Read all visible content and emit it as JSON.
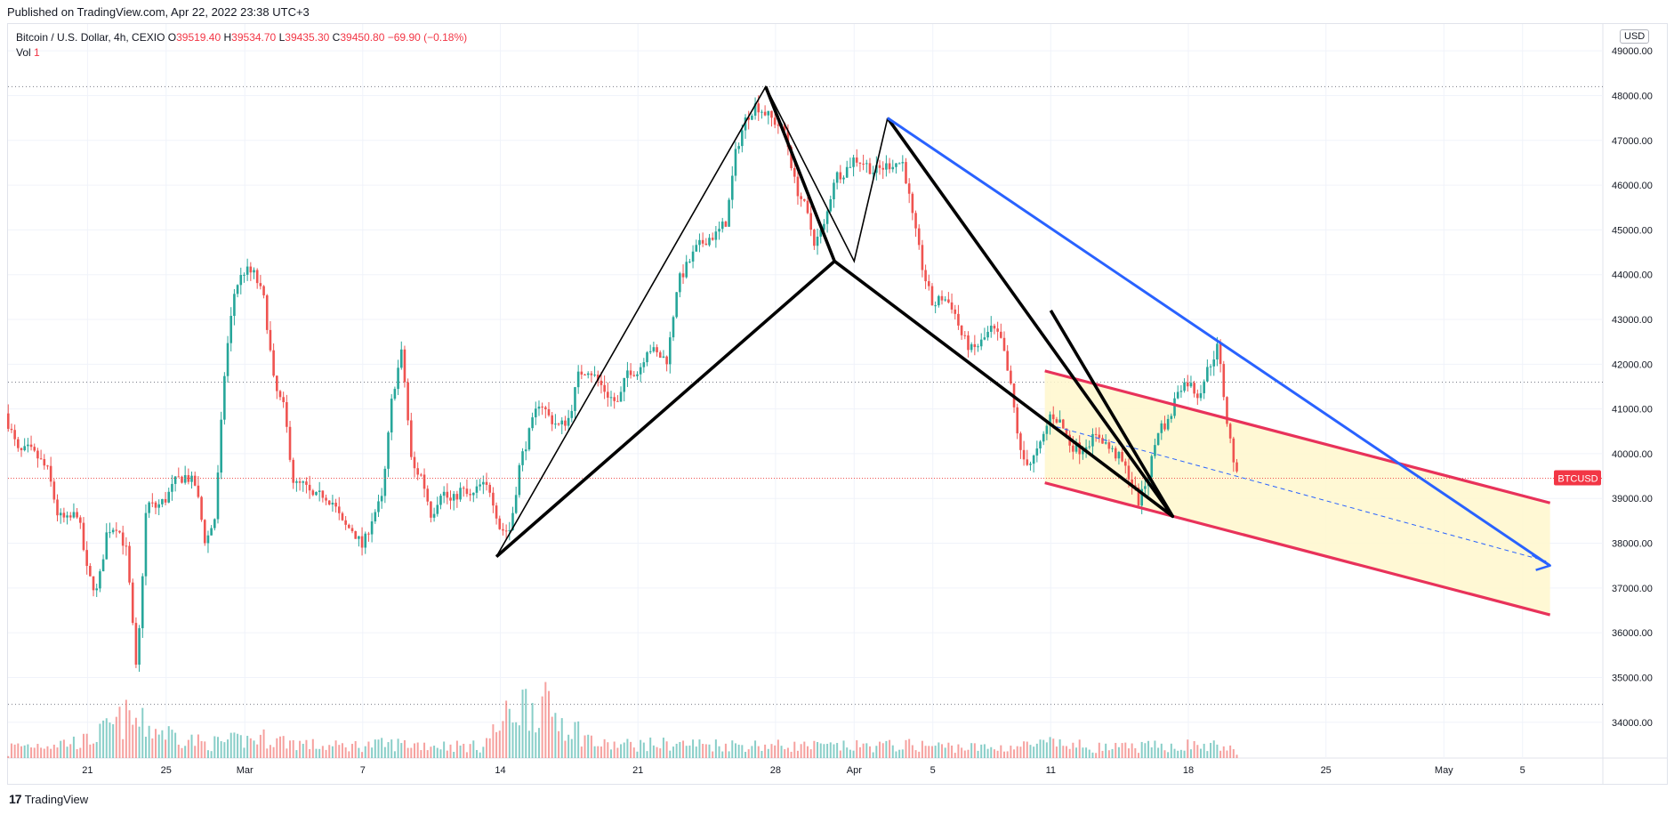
{
  "header": {
    "published": "Published on TradingView.com, Apr 22, 2022 23:38 UTC+3"
  },
  "legend": {
    "symbol": "Bitcoin / U.S. Dollar, 4h, CEXIO",
    "o_label": "O",
    "o_value": "39519.40",
    "h_label": "H",
    "h_value": "39534.70",
    "l_label": "L",
    "l_value": "39435.30",
    "c_label": "C",
    "c_value": "39450.80",
    "change": "−69.90 (−0.18%)",
    "vol_label": "Vol",
    "vol_value": "1"
  },
  "currency": "USD",
  "price_tag": "BTCUSD",
  "footer": {
    "brand": "TradingView"
  },
  "colors": {
    "up": "#26a69a",
    "down": "#ef5350",
    "channel": "#e8325a",
    "channel_fill": "#fff7cc",
    "trend": "#2962ff",
    "pattern": "#000000",
    "grid": "#f0f3fa"
  },
  "chart_data": {
    "type": "candlestick",
    "timeframe": "4h",
    "ylim": [
      33200,
      49600
    ],
    "y_ticks": [
      34000,
      35000,
      36000,
      37000,
      38000,
      39000,
      40000,
      41000,
      42000,
      43000,
      44000,
      45000,
      46000,
      47000,
      48000,
      49000
    ],
    "y_tick_labels": [
      "34000.00",
      "35000.00",
      "36000.00",
      "37000.00",
      "38000.00",
      "39000.00",
      "40000.00",
      "41000.00",
      "42000.00",
      "43000.00",
      "44000.00",
      "45000.00",
      "46000.00",
      "47000.00",
      "48000.00",
      "49000.00"
    ],
    "x_ticks": [
      {
        "label": "21",
        "t": 4
      },
      {
        "label": "25",
        "t": 8
      },
      {
        "label": "Mar",
        "t": 12
      },
      {
        "label": "7",
        "t": 18
      },
      {
        "label": "14",
        "t": 25
      },
      {
        "label": "21",
        "t": 32
      },
      {
        "label": "28",
        "t": 39
      },
      {
        "label": "Apr",
        "t": 43
      },
      {
        "label": "5",
        "t": 47
      },
      {
        "label": "11",
        "t": 53
      },
      {
        "label": "18",
        "t": 60
      },
      {
        "label": "25",
        "t": 67
      },
      {
        "label": "May",
        "t": 73
      },
      {
        "label": "5",
        "t": 77
      }
    ],
    "last_price": 39450.8,
    "horizontal_levels": [
      48200,
      41600,
      34400
    ],
    "close_path": [
      [
        -0.2,
        40900
      ],
      [
        0.5,
        40000
      ],
      [
        1,
        40100
      ],
      [
        1.5,
        39900
      ],
      [
        2,
        39600
      ],
      [
        2.5,
        38600
      ],
      [
        3,
        38500
      ],
      [
        3.5,
        38700
      ],
      [
        4,
        37300
      ],
      [
        4.5,
        36900
      ],
      [
        5,
        38300
      ],
      [
        5.5,
        38400
      ],
      [
        6,
        37800
      ],
      [
        6.5,
        35000
      ],
      [
        7,
        38900
      ],
      [
        7.5,
        38800
      ],
      [
        8,
        39000
      ],
      [
        8.5,
        39400
      ],
      [
        9,
        39500
      ],
      [
        9.5,
        39300
      ],
      [
        10,
        38000
      ],
      [
        10.5,
        38600
      ],
      [
        11,
        42000
      ],
      [
        11.5,
        43700
      ],
      [
        12,
        44100
      ],
      [
        12.5,
        44000
      ],
      [
        13,
        43400
      ],
      [
        13.5,
        41500
      ],
      [
        14,
        41000
      ],
      [
        14.5,
        39300
      ],
      [
        15,
        39300
      ],
      [
        15.5,
        39000
      ],
      [
        16,
        39100
      ],
      [
        16.5,
        38900
      ],
      [
        17,
        38400
      ],
      [
        17.5,
        38300
      ],
      [
        18,
        37900
      ],
      [
        18.5,
        38600
      ],
      [
        19,
        39000
      ],
      [
        19.5,
        41300
      ],
      [
        20,
        42300
      ],
      [
        20.5,
        39700
      ],
      [
        21,
        39500
      ],
      [
        21.5,
        38600
      ],
      [
        22,
        39200
      ],
      [
        22.5,
        38900
      ],
      [
        23,
        39200
      ],
      [
        23.5,
        39000
      ],
      [
        24,
        39300
      ],
      [
        24.5,
        39200
      ],
      [
        25,
        38300
      ],
      [
        25.5,
        38300
      ],
      [
        26,
        39800
      ],
      [
        26.5,
        40500
      ],
      [
        27,
        41200
      ],
      [
        27.5,
        40800
      ],
      [
        28,
        40600
      ],
      [
        28.5,
        40800
      ],
      [
        29,
        41800
      ],
      [
        29.5,
        41900
      ],
      [
        30,
        41600
      ],
      [
        30.5,
        41300
      ],
      [
        31,
        41100
      ],
      [
        31.5,
        41900
      ],
      [
        32,
        41800
      ],
      [
        32.5,
        42400
      ],
      [
        33,
        42200
      ],
      [
        33.5,
        42100
      ],
      [
        34,
        43800
      ],
      [
        34.5,
        44200
      ],
      [
        35,
        44600
      ],
      [
        35.5,
        44800
      ],
      [
        36,
        44900
      ],
      [
        36.5,
        45200
      ],
      [
        37,
        46800
      ],
      [
        37.5,
        47500
      ],
      [
        38,
        47800
      ],
      [
        38.5,
        47600
      ],
      [
        39,
        47400
      ],
      [
        39.5,
        47200
      ],
      [
        40,
        46000
      ],
      [
        40.5,
        45500
      ],
      [
        41,
        44700
      ],
      [
        41.5,
        45100
      ],
      [
        42,
        46200
      ],
      [
        42.5,
        46300
      ],
      [
        43,
        46600
      ],
      [
        43.5,
        46500
      ],
      [
        44,
        46300
      ],
      [
        44.5,
        46400
      ],
      [
        45,
        46500
      ],
      [
        45.5,
        46500
      ],
      [
        46,
        45200
      ],
      [
        46.5,
        44100
      ],
      [
        47,
        43300
      ],
      [
        47.5,
        43500
      ],
      [
        48,
        43300
      ],
      [
        48.5,
        42600
      ],
      [
        49,
        42300
      ],
      [
        49.5,
        42500
      ],
      [
        50,
        42800
      ],
      [
        50.5,
        42500
      ],
      [
        51,
        41400
      ],
      [
        51.5,
        39900
      ],
      [
        52,
        39800
      ],
      [
        52.5,
        40200
      ],
      [
        53,
        40900
      ],
      [
        53.5,
        40700
      ],
      [
        54,
        40200
      ],
      [
        54.5,
        40100
      ],
      [
        55,
        40300
      ],
      [
        55.5,
        40400
      ],
      [
        56,
        40100
      ],
      [
        56.5,
        39900
      ],
      [
        57,
        39500
      ],
      [
        57.5,
        38900
      ],
      [
        58,
        39600
      ],
      [
        58.5,
        40600
      ],
      [
        59,
        40700
      ],
      [
        59.5,
        41500
      ],
      [
        60,
        41600
      ],
      [
        60.5,
        41300
      ],
      [
        61,
        41900
      ],
      [
        61.5,
        42400
      ],
      [
        62,
        40600
      ],
      [
        62.5,
        39400
      ]
    ],
    "volume_max_units": 100,
    "volume_profile": [
      [
        0,
        8
      ],
      [
        4,
        12
      ],
      [
        6,
        28
      ],
      [
        7,
        22
      ],
      [
        10,
        10
      ],
      [
        13,
        14
      ],
      [
        16,
        8
      ],
      [
        20,
        10
      ],
      [
        24,
        8
      ],
      [
        26,
        38
      ],
      [
        27,
        38
      ],
      [
        30,
        9
      ],
      [
        34,
        10
      ],
      [
        38,
        9
      ],
      [
        42,
        8
      ],
      [
        46,
        9
      ],
      [
        50,
        7
      ],
      [
        53,
        10
      ],
      [
        56,
        7
      ],
      [
        60,
        9
      ],
      [
        62,
        8
      ],
      [
        62.5,
        2
      ]
    ],
    "annotations": {
      "channel": {
        "upper": [
          [
            52.7,
            41850
          ],
          [
            78.4,
            38900
          ]
        ],
        "lower": [
          [
            52.7,
            39350
          ],
          [
            78.4,
            36400
          ]
        ],
        "midline_dashed": [
          [
            53.3,
            40600
          ],
          [
            78.2,
            37600
          ]
        ]
      },
      "trend_arrow": [
        [
          44.7,
          47500
        ],
        [
          78.4,
          37500
        ]
      ],
      "pattern_thin": [
        [
          [
            24.8,
            37700
          ],
          [
            38.5,
            48200
          ],
          [
            43.0,
            44300
          ],
          [
            44.7,
            47500
          ]
        ]
      ],
      "pattern_thick": [
        [
          [
            24.8,
            37700
          ],
          [
            42.0,
            44300
          ],
          [
            59.2,
            38600
          ],
          [
            44.7,
            47500
          ]
        ],
        [
          [
            38.5,
            48200
          ],
          [
            42.0,
            44300
          ]
        ],
        [
          [
            59.2,
            38600
          ],
          [
            53.0,
            43200
          ]
        ]
      ]
    }
  }
}
